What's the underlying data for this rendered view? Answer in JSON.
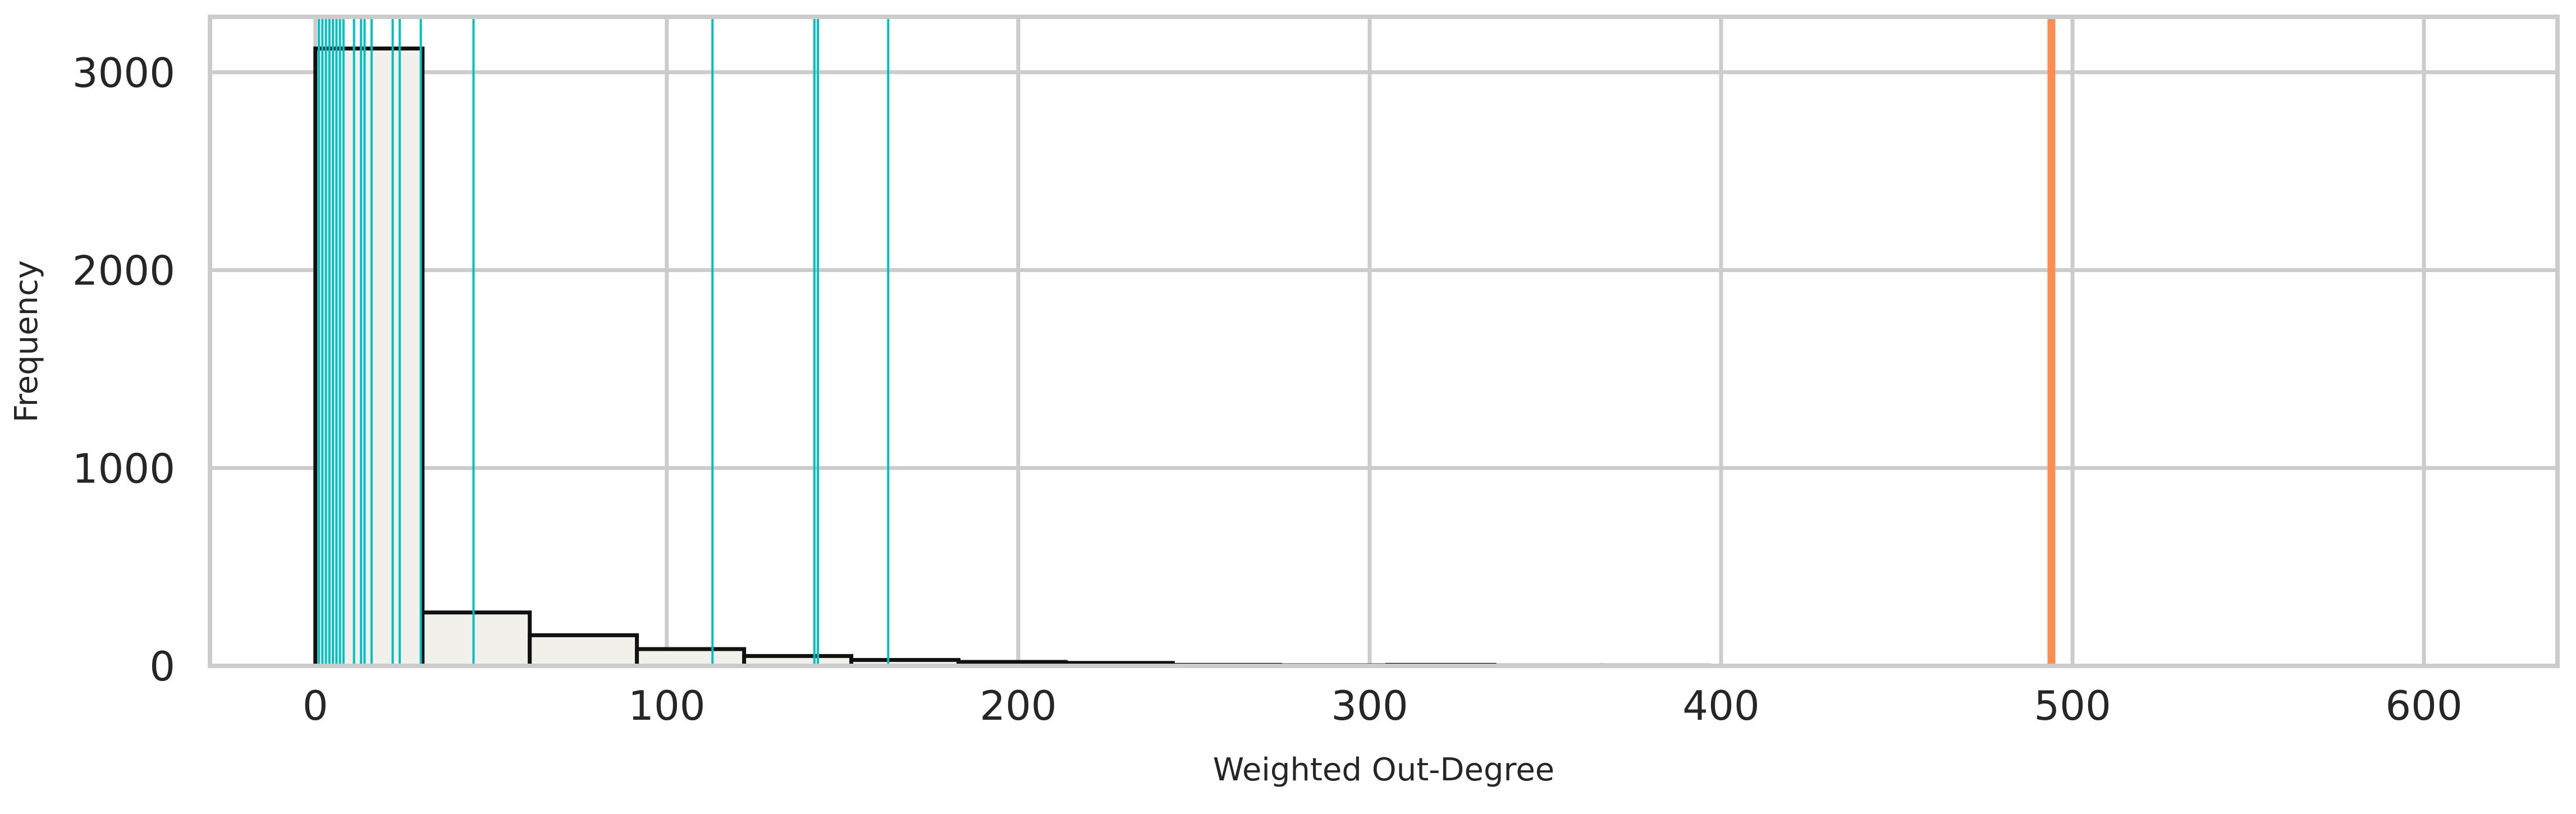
{
  "chart_data": {
    "type": "histogram",
    "title": "",
    "xlabel": "Weighted Out-Degree",
    "ylabel": "Frequency",
    "xlim": [
      -30,
      638
    ],
    "ylim": [
      0,
      3280
    ],
    "xticks": [
      0,
      100,
      200,
      300,
      400,
      500,
      600
    ],
    "yticks": [
      0,
      1000,
      2000,
      3000
    ],
    "grid": true,
    "histogram": {
      "bin_width": 30.5,
      "bin_start": 0,
      "counts": [
        3120,
        270,
        155,
        85,
        50,
        30,
        20,
        15,
        5,
        3,
        5,
        2,
        2,
        1,
        1,
        1,
        1,
        1,
        1,
        1
      ]
    },
    "highlight_lines": {
      "color": "#00c0c0",
      "x": [
        1,
        2,
        3,
        4,
        5,
        6,
        7,
        8,
        11,
        13,
        14,
        16,
        22,
        24,
        30,
        45,
        113,
        142,
        143,
        163
      ]
    },
    "reference_line": {
      "color": "#ff8c50",
      "x": 494
    },
    "colors": {
      "bar_fill": "#f2f0ea",
      "bar_edge": "#111111",
      "grid": "#cccccc",
      "axes_edge": "#cccccc"
    }
  }
}
